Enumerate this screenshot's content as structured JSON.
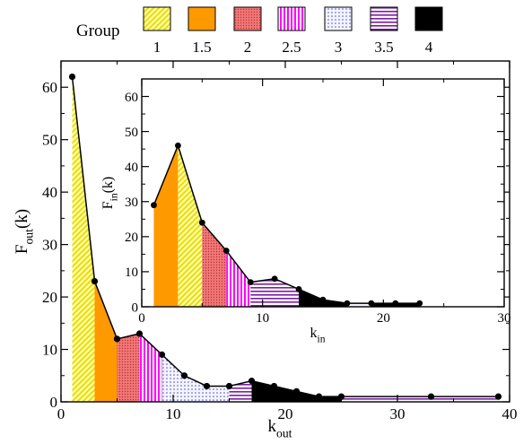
{
  "legend": {
    "title": "Group",
    "items": [
      {
        "label": "1",
        "pattern": "diag",
        "color": "#ffff66"
      },
      {
        "label": "1.5",
        "pattern": "solid",
        "color": "#ff9900"
      },
      {
        "label": "2",
        "pattern": "dots",
        "color": "#f07070"
      },
      {
        "label": "2.5",
        "pattern": "vlines",
        "color": "#ff00ff"
      },
      {
        "label": "3",
        "pattern": "sdots",
        "color": "#b0b0ff"
      },
      {
        "label": "3.5",
        "pattern": "hlines",
        "color": "#7a1fa0"
      },
      {
        "label": "4",
        "pattern": "black",
        "color": "#000000"
      }
    ]
  },
  "chart_data": [
    {
      "type": "area",
      "role": "main",
      "xlabel": "k",
      "xlabel_sub": "out",
      "ylabel": "F",
      "ylabel_sub": "out",
      "ylabel_suffix": "(k)",
      "xlim": [
        0,
        40
      ],
      "ylim": [
        0,
        65
      ],
      "xticks": [
        0,
        10,
        20,
        30,
        40
      ],
      "yticks": [
        0,
        10,
        20,
        30,
        40,
        50,
        60
      ],
      "x": [
        1,
        3,
        5,
        7,
        9,
        11,
        13,
        15,
        17,
        19,
        21,
        23,
        25,
        33,
        39
      ],
      "y": [
        62,
        23,
        12,
        13,
        9,
        5,
        3,
        3,
        4,
        3,
        2,
        1,
        1,
        1,
        1
      ],
      "segments": [
        {
          "group": "1",
          "x": [
            1,
            3
          ]
        },
        {
          "group": "1.5",
          "x": [
            3,
            5
          ]
        },
        {
          "group": "2",
          "x": [
            5,
            7
          ]
        },
        {
          "group": "2.5",
          "x": [
            7,
            9
          ]
        },
        {
          "group": "3",
          "x": [
            9,
            15
          ]
        },
        {
          "group": "3.5",
          "x": [
            15,
            17
          ]
        },
        {
          "group": "4",
          "x": [
            17,
            25
          ]
        },
        {
          "group": "3.5",
          "x": [
            25,
            39
          ]
        }
      ]
    },
    {
      "type": "area",
      "role": "inset",
      "xlabel": "k",
      "xlabel_sub": "in",
      "ylabel": "F",
      "ylabel_sub": "in",
      "ylabel_suffix": "(k)",
      "xlim": [
        0,
        30
      ],
      "ylim": [
        0,
        65
      ],
      "xticks": [
        0,
        10,
        20,
        30
      ],
      "yticks": [
        0,
        10,
        20,
        30,
        40,
        50,
        60
      ],
      "x": [
        1,
        3,
        5,
        7,
        9,
        11,
        13,
        15,
        17,
        19,
        21,
        23
      ],
      "y": [
        29,
        46,
        24,
        16,
        7,
        8,
        5,
        2,
        1,
        1,
        1,
        1
      ],
      "segments": [
        {
          "group": "1.5",
          "x": [
            1,
            3
          ]
        },
        {
          "group": "1",
          "x": [
            3,
            5
          ]
        },
        {
          "group": "2",
          "x": [
            5,
            7
          ]
        },
        {
          "group": "2.5",
          "x": [
            7,
            9
          ]
        },
        {
          "group": "3.5",
          "x": [
            9,
            13
          ]
        },
        {
          "group": "4",
          "x": [
            13,
            17
          ]
        },
        {
          "group": "3",
          "x": [
            17,
            19
          ]
        },
        {
          "group": "4",
          "x": [
            19,
            23
          ]
        }
      ]
    }
  ]
}
